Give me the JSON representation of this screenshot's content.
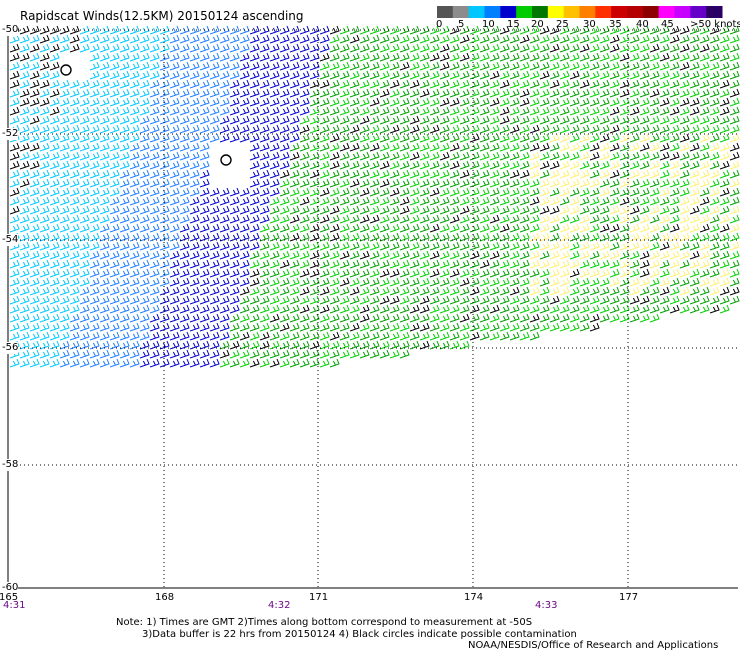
{
  "title": "Rapidscat Winds(12.5KM) 20150124 ascending",
  "legend": {
    "colors": [
      "#555555",
      "#8c8c8c",
      "#00c8ff",
      "#0080ff",
      "#0000cc",
      "#00cc00",
      "#007800",
      "#ffff00",
      "#ffc000",
      "#ff8000",
      "#ff3000",
      "#cc0000",
      "#b40000",
      "#8c0000",
      "#ff00ff",
      "#c800ff",
      "#6400c8",
      "#2a0064"
    ],
    "labels": [
      "0",
      "5",
      "10",
      "15",
      "20",
      "25",
      "30",
      "35",
      "40",
      "45",
      ">50 knots"
    ]
  },
  "lat_labels": [
    "-50",
    "-52",
    "-54",
    "-56",
    "-58",
    "-60"
  ],
  "lon_labels": [
    "165",
    "168",
    "171",
    "174",
    "177"
  ],
  "time_labels": [
    "4:31",
    "4:32",
    "4:33"
  ],
  "notes": {
    "line1": "Note: 1) Times are GMT 2)Times along bottom correspond to measurement at -50S",
    "line2": "3)Data buffer is 22 hrs from 20150124 4) Black circles indicate possible contamination",
    "credit": "NOAA/NESDIS/Office of Research and Applications"
  }
}
